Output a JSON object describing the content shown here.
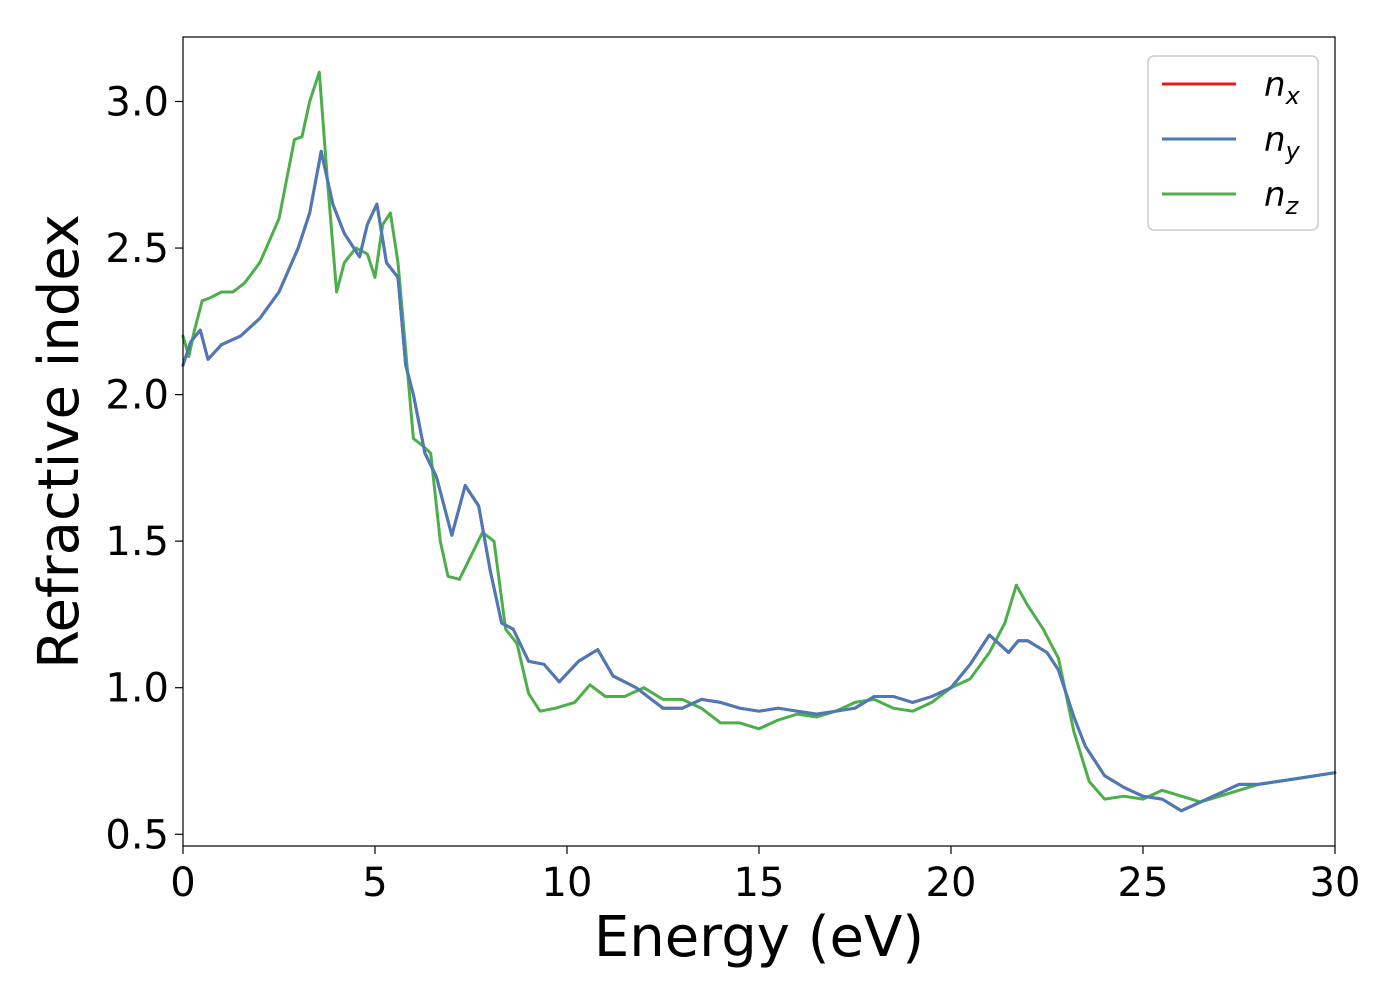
{
  "chart_data": {
    "type": "line",
    "xlabel": "Energy (eV)",
    "ylabel": "Refractive index",
    "xlim": [
      0,
      30
    ],
    "ylim": [
      0.46,
      3.22
    ],
    "xticks": [
      0,
      5,
      10,
      15,
      20,
      25,
      30
    ],
    "xtick_labels": [
      "0",
      "5",
      "10",
      "15",
      "20",
      "25",
      "30"
    ],
    "yticks": [
      0.5,
      1.0,
      1.5,
      2.0,
      2.5,
      3.0
    ],
    "ytick_labels": [
      "0.5",
      "1.0",
      "1.5",
      "2.0",
      "2.5",
      "3.0"
    ],
    "grid": false,
    "legend_position": "top-right",
    "series": [
      {
        "name": "n_x",
        "label_base": "n",
        "label_sub": "x",
        "color": "#e41a1c",
        "x": [
          0,
          0.2,
          0.45,
          0.65,
          1.0,
          1.5,
          2.0,
          2.5,
          3.0,
          3.3,
          3.6,
          3.9,
          4.2,
          4.6,
          4.8,
          5.05,
          5.3,
          5.6,
          5.8,
          6.0,
          6.3,
          6.6,
          7.0,
          7.35,
          7.7,
          8.0,
          8.3,
          8.6,
          9.0,
          9.4,
          9.8,
          10.3,
          10.8,
          11.2,
          11.8,
          12.5,
          13.0,
          13.5,
          14.0,
          14.5,
          15.0,
          15.5,
          16.0,
          16.5,
          17.0,
          17.5,
          18.0,
          18.5,
          19.0,
          19.5,
          20.0,
          20.5,
          21.0,
          21.5,
          21.75,
          22.0,
          22.5,
          22.8,
          23.2,
          23.5,
          24.0,
          24.5,
          25.0,
          25.5,
          26.0,
          26.5,
          27.0,
          27.5,
          28.0,
          29.0,
          30.0
        ],
        "values": [
          2.1,
          2.18,
          2.22,
          2.12,
          2.17,
          2.2,
          2.26,
          2.35,
          2.5,
          2.62,
          2.83,
          2.65,
          2.55,
          2.47,
          2.58,
          2.65,
          2.45,
          2.4,
          2.1,
          2.0,
          1.8,
          1.72,
          1.52,
          1.69,
          1.62,
          1.4,
          1.22,
          1.2,
          1.09,
          1.08,
          1.02,
          1.09,
          1.13,
          1.04,
          1.0,
          0.93,
          0.93,
          0.96,
          0.95,
          0.93,
          0.92,
          0.93,
          0.92,
          0.91,
          0.92,
          0.93,
          0.97,
          0.97,
          0.95,
          0.97,
          1.0,
          1.08,
          1.18,
          1.12,
          1.16,
          1.16,
          1.12,
          1.06,
          0.9,
          0.8,
          0.7,
          0.66,
          0.63,
          0.62,
          0.58,
          0.61,
          0.64,
          0.67,
          0.67,
          0.69,
          0.71
        ]
      },
      {
        "name": "n_y",
        "label_base": "n",
        "label_sub": "y",
        "color": "#4a7ab8",
        "x": [
          0,
          0.2,
          0.45,
          0.65,
          1.0,
          1.5,
          2.0,
          2.5,
          3.0,
          3.3,
          3.6,
          3.9,
          4.2,
          4.6,
          4.8,
          5.05,
          5.3,
          5.6,
          5.8,
          6.0,
          6.3,
          6.6,
          7.0,
          7.35,
          7.7,
          8.0,
          8.3,
          8.6,
          9.0,
          9.4,
          9.8,
          10.3,
          10.8,
          11.2,
          11.8,
          12.5,
          13.0,
          13.5,
          14.0,
          14.5,
          15.0,
          15.5,
          16.0,
          16.5,
          17.0,
          17.5,
          18.0,
          18.5,
          19.0,
          19.5,
          20.0,
          20.5,
          21.0,
          21.5,
          21.75,
          22.0,
          22.5,
          22.8,
          23.2,
          23.5,
          24.0,
          24.5,
          25.0,
          25.5,
          26.0,
          26.5,
          27.0,
          27.5,
          28.0,
          29.0,
          30.0
        ],
        "values": [
          2.1,
          2.18,
          2.22,
          2.12,
          2.17,
          2.2,
          2.26,
          2.35,
          2.5,
          2.62,
          2.83,
          2.65,
          2.55,
          2.47,
          2.58,
          2.65,
          2.45,
          2.4,
          2.1,
          2.0,
          1.8,
          1.72,
          1.52,
          1.69,
          1.62,
          1.4,
          1.22,
          1.2,
          1.09,
          1.08,
          1.02,
          1.09,
          1.13,
          1.04,
          1.0,
          0.93,
          0.93,
          0.96,
          0.95,
          0.93,
          0.92,
          0.93,
          0.92,
          0.91,
          0.92,
          0.93,
          0.97,
          0.97,
          0.95,
          0.97,
          1.0,
          1.08,
          1.18,
          1.12,
          1.16,
          1.16,
          1.12,
          1.06,
          0.9,
          0.8,
          0.7,
          0.66,
          0.63,
          0.62,
          0.58,
          0.61,
          0.64,
          0.67,
          0.67,
          0.69,
          0.71
        ]
      },
      {
        "name": "n_z",
        "label_base": "n",
        "label_sub": "z",
        "color": "#4daf4a",
        "x": [
          0,
          0.15,
          0.3,
          0.5,
          0.7,
          1.0,
          1.3,
          1.6,
          2.0,
          2.5,
          2.9,
          3.1,
          3.3,
          3.55,
          3.75,
          4.0,
          4.2,
          4.5,
          4.8,
          5.0,
          5.2,
          5.4,
          5.6,
          5.8,
          6.0,
          6.2,
          6.45,
          6.7,
          6.9,
          7.2,
          7.5,
          7.8,
          8.1,
          8.4,
          8.7,
          9.0,
          9.3,
          9.7,
          10.2,
          10.6,
          11.0,
          11.5,
          12.0,
          12.5,
          13.0,
          13.5,
          14.0,
          14.5,
          15.0,
          15.5,
          16.0,
          16.5,
          17.0,
          17.5,
          18.0,
          18.5,
          19.0,
          19.5,
          20.0,
          20.5,
          21.0,
          21.4,
          21.7,
          22.0,
          22.4,
          22.8,
          23.2,
          23.6,
          24.0,
          24.5,
          25.0,
          25.5,
          26.0,
          26.5,
          27.0,
          27.5,
          28.0,
          29.0,
          30.0
        ],
        "values": [
          2.2,
          2.13,
          2.22,
          2.32,
          2.33,
          2.35,
          2.35,
          2.38,
          2.45,
          2.6,
          2.87,
          2.88,
          3.0,
          3.1,
          2.75,
          2.35,
          2.45,
          2.5,
          2.48,
          2.4,
          2.58,
          2.62,
          2.45,
          2.15,
          1.85,
          1.83,
          1.8,
          1.5,
          1.38,
          1.37,
          1.45,
          1.53,
          1.5,
          1.2,
          1.15,
          0.98,
          0.92,
          0.93,
          0.95,
          1.01,
          0.97,
          0.97,
          1.0,
          0.96,
          0.96,
          0.93,
          0.88,
          0.88,
          0.86,
          0.89,
          0.91,
          0.9,
          0.92,
          0.95,
          0.96,
          0.93,
          0.92,
          0.95,
          1.0,
          1.03,
          1.12,
          1.22,
          1.35,
          1.28,
          1.2,
          1.1,
          0.85,
          0.68,
          0.62,
          0.63,
          0.62,
          0.65,
          0.63,
          0.61,
          0.63,
          0.65,
          0.67,
          0.69,
          0.71
        ]
      }
    ]
  }
}
